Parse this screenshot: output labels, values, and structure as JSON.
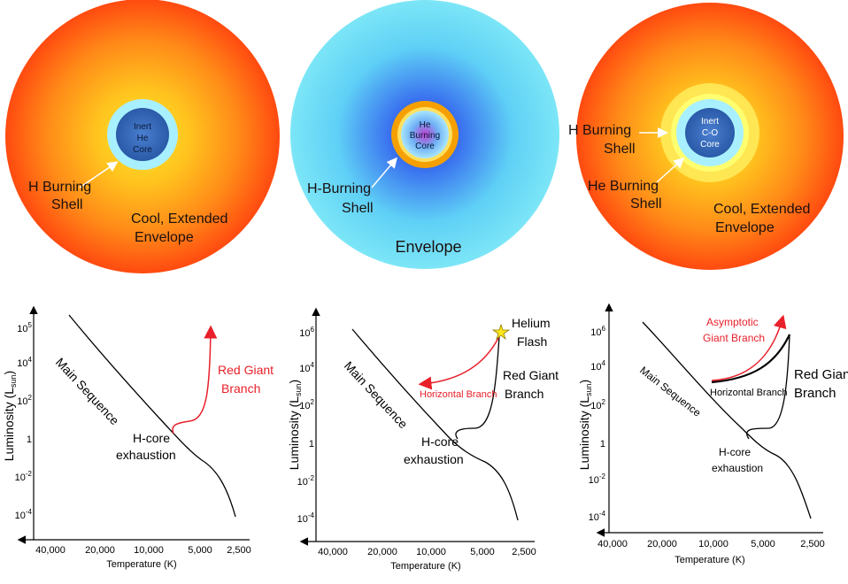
{
  "panels": [
    {
      "star": {
        "core": [
          "Inert",
          "He",
          "Core"
        ],
        "shell": [
          "H Burning",
          "Shell"
        ],
        "envelope": [
          "Cool, Extended",
          "Envelope"
        ]
      },
      "hr": {
        "y_ticks": [
          "10^5",
          "10^4",
          "10^2",
          "1",
          "10^-2",
          "10^-4"
        ],
        "x_ticks": [
          "40,000",
          "20,000",
          "10,000",
          "5,000",
          "2,500"
        ],
        "ylabel": "Luminosity (L",
        "ylabel_sub": "sun",
        "xlabel": "Temperature (K)",
        "main_sequence": "Main Sequence",
        "hcore": [
          "H-core",
          "exhaustion"
        ],
        "branch": [
          "Red Giant",
          "Branch"
        ]
      }
    },
    {
      "star": {
        "core": [
          "He",
          "Burning",
          "Core"
        ],
        "shell": [
          "H-Burning",
          "Shell"
        ],
        "envelope": [
          "Envelope"
        ]
      },
      "hr": {
        "y_ticks": [
          "10^6",
          "10^4",
          "10^2",
          "1",
          "10^-2",
          "10^-4"
        ],
        "x_ticks": [
          "40,000",
          "20,000",
          "10,000",
          "5,000",
          "2,500"
        ],
        "ylabel": "Luminosity (L",
        "ylabel_sub": "sun",
        "xlabel": "Temperature (K)",
        "main_sequence": "Main Sequence",
        "hcore": [
          "H-core",
          "exhaustion"
        ],
        "flash": [
          "Helium",
          "Flash"
        ],
        "horizontal": "Horizontal Branch",
        "branch": [
          "Red Giant",
          "Branch"
        ]
      }
    },
    {
      "star": {
        "core": [
          "Inert",
          "C-O",
          "Core"
        ],
        "shell": [
          "H Burning",
          "Shell"
        ],
        "shell2": [
          "He Burning",
          "Shell"
        ],
        "envelope": [
          "Cool, Extended",
          "Envelope"
        ]
      },
      "hr": {
        "y_ticks": [
          "10^6",
          "10^4",
          "10^2",
          "1",
          "10^-2",
          "10^-4"
        ],
        "x_ticks": [
          "40,000",
          "20,000",
          "10,000",
          "5,000",
          "2,500"
        ],
        "ylabel": "Luminosity (L",
        "ylabel_sub": "sun",
        "xlabel": "Temperature (K)",
        "main_sequence": "Main Sequence",
        "hcore": [
          "H-core",
          "exhaustion"
        ],
        "horizontal": "Horizontal Branch",
        "asymptotic": [
          "Asymptotic",
          "Giant Branch"
        ],
        "branch": [
          "Red Giant",
          "Branch"
        ]
      }
    }
  ],
  "colors": {
    "red": "#e8202a",
    "orange_envelope": "#ff5a12",
    "yellow_glow": "#ffd820",
    "blue_envelope": "#6fe3f5",
    "blue_center": "#2a3ee8",
    "core_blue": "#3c70c0",
    "shell_light_blue": "#a8f0ff",
    "ring_orange": "#f5a000"
  },
  "icons": [
    "arrow-icon",
    "star-burst-icon"
  ]
}
